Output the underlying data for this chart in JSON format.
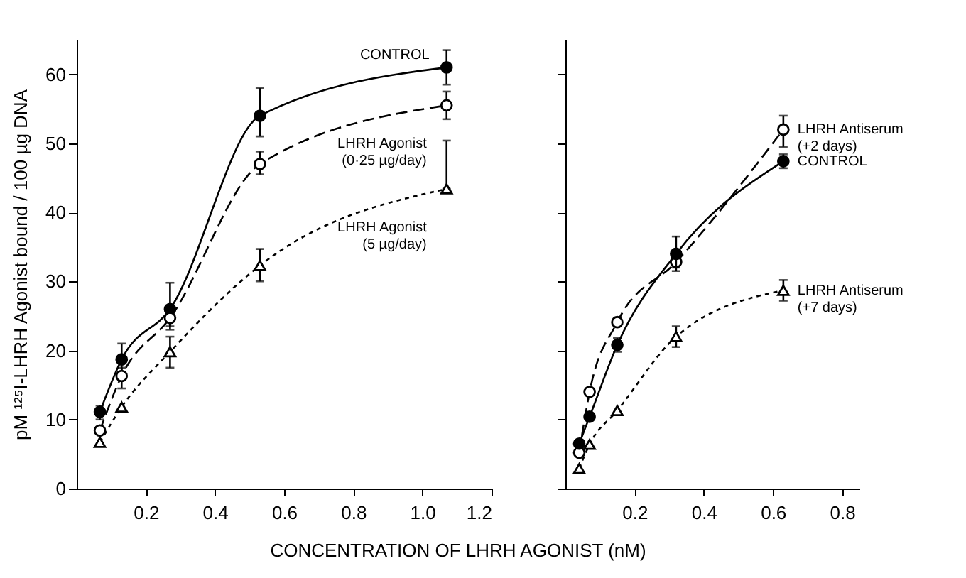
{
  "chart_data": [
    {
      "type": "line",
      "xlabel": "CONCENTRATION OF LHRH AGONIST (nM)",
      "ylabel": "pM ¹²⁵I-LHRH Agonist bound / 100 µg DNA",
      "xlim": [
        0,
        1.2
      ],
      "xticks": [
        0.2,
        0.4,
        0.6,
        0.8,
        {
          "value": 1.0,
          "label": "1.0"
        },
        1.2
      ],
      "ylim": [
        0,
        65
      ],
      "yticks": [
        0,
        10,
        20,
        30,
        40,
        50,
        60
      ],
      "legend": false,
      "grid": false,
      "series": [
        {
          "name": "CONTROL",
          "color": "#000000",
          "marker": "circle",
          "line_style": "solid",
          "x": [
            0.067,
            0.13,
            0.27,
            0.53,
            1.07
          ],
          "values": [
            11.1,
            18.7,
            26,
            54,
            61
          ],
          "errors": [
            [
              10,
              12
            ],
            [
              16,
              21
            ],
            [
              23.5,
              29.8
            ],
            [
              51,
              58
            ],
            [
              58.5,
              63.5
            ]
          ]
        },
        {
          "name": "LHRH Agonist\n(0·25 µg/day)",
          "color": "#000000",
          "marker": "circle",
          "line_style": "dashed",
          "x": [
            0.067,
            0.13,
            0.27,
            0.53,
            1.07
          ],
          "values": [
            8.4,
            16.3,
            24.7,
            47,
            55.5
          ],
          "errors": [
            null,
            [
              14.5,
              17.5
            ],
            [
              23,
              26.5
            ],
            [
              45.5,
              48.8
            ],
            [
              53.5,
              57.5
            ]
          ]
        },
        {
          "name": "LHRH Agonist\n(5 µg/day)",
          "color": "#000000",
          "marker": "triangle",
          "line_style": "dotted",
          "x": [
            0.067,
            0.13,
            0.27,
            0.53,
            1.07
          ],
          "values": [
            6.7,
            11.8,
            19.8,
            32.3,
            43.4
          ],
          "errors": [
            null,
            null,
            [
              17.5,
              22
            ],
            [
              30,
              34.7
            ],
            [
              43.4,
              50.4
            ]
          ]
        }
      ]
    },
    {
      "type": "line",
      "xlim": [
        0,
        0.85
      ],
      "xticks": [
        0.2,
        0.4,
        0.6,
        0.8
      ],
      "ylim": [
        0,
        65
      ],
      "yticks": [
        {
          "value": 0,
          "label": null
        },
        {
          "value": 10,
          "label": null
        },
        {
          "value": 20,
          "label": null
        },
        {
          "value": 30,
          "label": null
        },
        {
          "value": 40,
          "label": null
        },
        {
          "value": 50,
          "label": null
        },
        {
          "value": 60,
          "label": null
        }
      ],
      "tick_labels": "x",
      "legend": false,
      "grid": false,
      "series": [
        {
          "name": "LHRH Antiserum\n(+2 days)",
          "color": "#000000",
          "marker": "circle",
          "line_style": "dashed",
          "x": [
            0.04,
            0.07,
            0.15,
            0.32,
            0.63
          ],
          "values": [
            5.2,
            14,
            24.1,
            32.8,
            52
          ],
          "errors": [
            null,
            null,
            null,
            [
              31.5,
              34
            ],
            [
              49.5,
              54
            ]
          ]
        },
        {
          "name": "CONTROL",
          "color": "#000000",
          "marker": "circle",
          "line_style": "solid",
          "x": [
            0.04,
            0.07,
            0.15,
            0.32,
            0.63
          ],
          "values": [
            6.5,
            10.4,
            20.8,
            34,
            47.4
          ],
          "errors": [
            null,
            null,
            [
              19.8,
              21.8
            ],
            [
              32,
              36.5
            ],
            [
              46.4,
              48.4
            ]
          ]
        },
        {
          "name": "LHRH Antiserum\n(+7 days)",
          "color": "#000000",
          "marker": "triangle",
          "line_style": "dotted",
          "x": [
            0.04,
            0.07,
            0.15,
            0.32,
            0.63
          ],
          "values": [
            2.9,
            6.4,
            11.3,
            22,
            28.7
          ],
          "errors": [
            null,
            null,
            null,
            [
              20.5,
              23.5
            ],
            [
              27.2,
              30.2
            ]
          ]
        }
      ]
    }
  ]
}
